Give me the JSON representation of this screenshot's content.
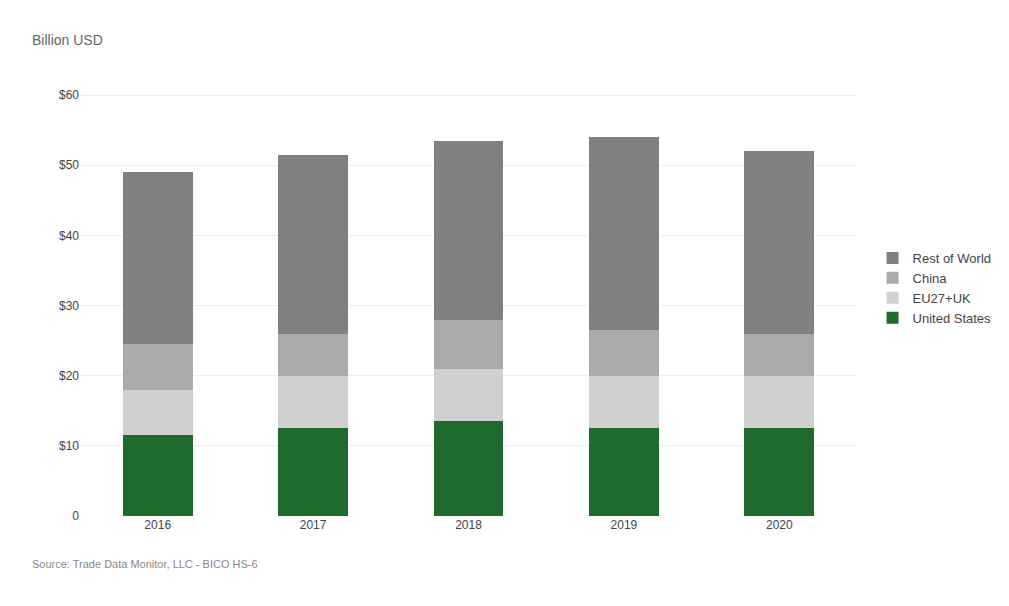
{
  "chart_data": {
    "type": "bar",
    "stacked": true,
    "categories": [
      "2016",
      "2017",
      "2018",
      "2019",
      "2020"
    ],
    "series": [
      {
        "name": "United States",
        "color": "#1f6b2e",
        "values": [
          11.5,
          12.5,
          13.5,
          12.5,
          12.5
        ]
      },
      {
        "name": "EU27+UK",
        "color": "#d0d0d0",
        "values": [
          6.5,
          7.5,
          7.5,
          7.5,
          7.5
        ]
      },
      {
        "name": "China",
        "color": "#aaaaaa",
        "values": [
          6.5,
          6.0,
          7.0,
          6.5,
          6.0
        ]
      },
      {
        "name": "Rest of World",
        "color": "#808080",
        "values": [
          24.5,
          25.5,
          25.5,
          27.5,
          26.0
        ]
      }
    ],
    "ylabel": "Billion USD",
    "ylim": [
      0,
      65
    ],
    "yticks": [
      0,
      {
        "value": 10,
        "label": "$10"
      },
      {
        "value": 20,
        "label": "$20"
      },
      {
        "value": 30,
        "label": "$30"
      },
      {
        "value": 40,
        "label": "$40"
      },
      {
        "value": 50,
        "label": "$50"
      },
      {
        "value": 60,
        "label": "$60"
      }
    ],
    "grid": true,
    "legend": "right",
    "annotations": [
      "Source: Trade Data Monitor, LLC - BICO HS-6"
    ]
  }
}
